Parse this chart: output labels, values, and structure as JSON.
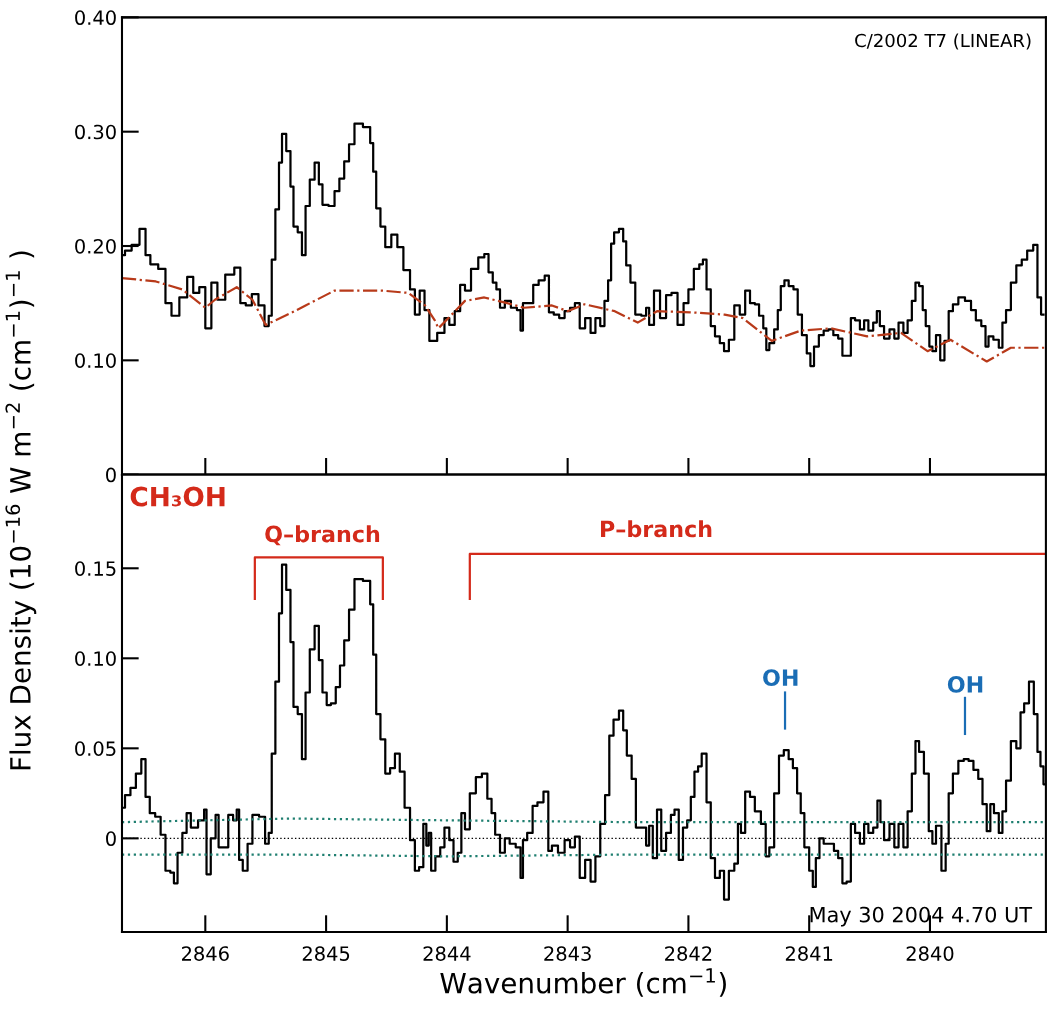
{
  "chart_data": [
    {
      "type": "step",
      "ylabel": "Flux Density (10$^{−16}$ W m$^{−2}$ (cm$^{−1}$)$^{−1}$ )",
      "xlim": [
        2846.69,
        2839.04
      ],
      "ylim": [
        0,
        0.4
      ],
      "xticks": [
        2846,
        2845,
        2844,
        2843,
        2842,
        2841,
        2840
      ],
      "yticks": [
        0,
        {
          "value": 0.1,
          "label": "0.10"
        },
        {
          "value": 0.2,
          "label": "0.20"
        },
        {
          "value": 0.3,
          "label": "0.30"
        },
        {
          "value": 0.4,
          "label": "0.40"
        }
      ],
      "tick_labels": "y",
      "grid": false,
      "legend": false,
      "annotations": [
        "C/2002 T7 (LINEAR)"
      ],
      "series": [
        {
          "color": "#000000",
          "line_style": "solid",
          "x": [
            2846.69,
            2846.64,
            2846.58,
            2846.51,
            2846.48,
            2846.43,
            2846.35,
            2846.31,
            2846.25,
            2846.18,
            2846.12,
            2846.08,
            2846.02,
            2845.98,
            2845.92,
            2845.88,
            2845.79,
            2845.73,
            2845.69,
            2845.64,
            2845.59,
            2845.53,
            2845.49,
            2845.46,
            2845.44,
            2845.4,
            2845.38,
            2845.35,
            2845.31,
            2845.28,
            2845.26,
            2845.21,
            2845.19,
            2845.15,
            2845.12,
            2845.07,
            2845.05,
            2845.01,
            2844.95,
            2844.91,
            2844.87,
            2844.83,
            2844.79,
            2844.74,
            2844.65,
            2844.62,
            2844.6,
            2844.57,
            2844.53,
            2844.49,
            2844.43,
            2844.39,
            2844.33,
            2844.28,
            2844.25,
            2844.2,
            2844.17,
            2844.12,
            2844.04,
            2844.0,
            2843.96,
            2843.91,
            2843.87,
            2843.83,
            2843.77,
            2843.71,
            2843.67,
            2843.64,
            2843.6,
            2843.58,
            2843.54,
            2843.5,
            2843.44,
            2843.4,
            2843.38,
            2843.36,
            2843.3,
            2843.27,
            2843.21,
            2843.17,
            2843.14,
            2843.09,
            2843.05,
            2843.0,
            2842.96,
            2842.92,
            2842.88,
            2842.83,
            2842.79,
            2842.75,
            2842.71,
            2842.68,
            2842.65,
            2842.63,
            2842.6,
            2842.55,
            2842.53,
            2842.5,
            2842.46,
            2842.42,
            2842.36,
            2842.34,
            2842.31,
            2842.26,
            2842.21,
            2842.16,
            2842.12,
            2842.06,
            2842.02,
            2841.98,
            2841.93,
            2841.89,
            2841.87,
            2841.83,
            2841.8,
            2841.76,
            2841.72,
            2841.69,
            2841.64,
            2841.6,
            2841.55,
            2841.51,
            2841.47,
            2841.43,
            2841.4,
            2841.36,
            2841.35,
            2841.31,
            2841.27,
            2841.25,
            2841.22,
            2841.19,
            2841.15,
            2841.11,
            2841.08,
            2841.04,
            2841.0,
            2840.98,
            2840.94,
            2840.9,
            2840.86,
            2840.82,
            2840.78,
            2840.74,
            2840.71,
            2840.67,
            2840.64,
            2840.6,
            2840.56,
            2840.53,
            2840.49,
            2840.45,
            2840.43,
            2840.4,
            2840.36,
            2840.31,
            2840.28,
            2840.24,
            2840.2,
            2840.17,
            2840.13,
            2840.11,
            2840.07,
            2840.05,
            2840.02,
            2839.99,
            2839.97,
            2839.93,
            2839.9,
            2839.86,
            2839.83,
            2839.79,
            2839.74,
            2839.68,
            2839.64,
            2839.6,
            2839.55,
            2839.53,
            2839.5,
            2839.45,
            2839.41,
            2839.39,
            2839.35,
            2839.31,
            2839.26,
            2839.22,
            2839.17,
            2839.12,
            2839.1,
            2839.06
          ],
          "values": [
            0.192,
            0.196,
            0.201,
            0.215,
            0.192,
            0.184,
            0.18,
            0.15,
            0.139,
            0.155,
            0.173,
            0.159,
            0.164,
            0.128,
            0.168,
            0.153,
            0.175,
            0.181,
            0.15,
            0.148,
            0.158,
            0.148,
            0.13,
            0.139,
            0.188,
            0.232,
            0.273,
            0.298,
            0.283,
            0.252,
            0.217,
            0.212,
            0.192,
            0.235,
            0.258,
            0.273,
            0.254,
            0.236,
            0.235,
            0.248,
            0.259,
            0.274,
            0.289,
            0.307,
            0.304,
            0.29,
            0.265,
            0.233,
            0.217,
            0.199,
            0.21,
            0.199,
            0.179,
            0.162,
            0.14,
            0.161,
            0.144,
            0.117,
            0.124,
            0.137,
            0.131,
            0.143,
            0.166,
            0.161,
            0.18,
            0.19,
            0.193,
            0.177,
            0.168,
            0.162,
            0.146,
            0.152,
            0.146,
            0.144,
            0.126,
            0.15,
            0.15,
            0.166,
            0.17,
            0.174,
            0.142,
            0.14,
            0.137,
            0.143,
            0.146,
            0.15,
            0.128,
            0.137,
            0.124,
            0.137,
            0.13,
            0.152,
            0.17,
            0.202,
            0.212,
            0.215,
            0.204,
            0.183,
            0.168,
            0.14,
            0.139,
            0.146,
            0.131,
            0.161,
            0.137,
            0.157,
            0.159,
            0.131,
            0.15,
            0.162,
            0.18,
            0.184,
            0.188,
            0.162,
            0.13,
            0.121,
            0.115,
            0.108,
            0.118,
            0.148,
            0.14,
            0.161,
            0.15,
            0.149,
            0.139,
            0.128,
            0.109,
            0.115,
            0.127,
            0.144,
            0.165,
            0.17,
            0.165,
            0.162,
            0.14,
            0.122,
            0.106,
            0.095,
            0.112,
            0.122,
            0.126,
            0.127,
            0.122,
            0.119,
            0.104,
            0.104,
            0.137,
            0.135,
            0.127,
            0.135,
            0.126,
            0.133,
            0.143,
            0.13,
            0.119,
            0.127,
            0.119,
            0.133,
            0.124,
            0.135,
            0.152,
            0.168,
            0.165,
            0.144,
            0.13,
            0.112,
            0.108,
            0.122,
            0.1,
            0.117,
            0.143,
            0.149,
            0.155,
            0.152,
            0.144,
            0.135,
            0.13,
            0.112,
            0.121,
            0.118,
            0.111,
            0.133,
            0.144,
            0.168,
            0.183,
            0.188,
            0.196,
            0.201,
            0.155,
            0.14
          ]
        },
        {
          "type": "line",
          "color": "#b83a1a",
          "line_style": "dashdot",
          "x": [
            2846.69,
            2846.41,
            2846.19,
            2846.0,
            2845.92,
            2845.74,
            2845.61,
            2845.5,
            2845.28,
            2845.17,
            2844.93,
            2844.54,
            2844.32,
            2844.18,
            2844.1,
            2844.07,
            2843.85,
            2843.69,
            2843.5,
            2843.36,
            2843.13,
            2843.0,
            2842.86,
            2842.61,
            2842.42,
            2842.26,
            2841.98,
            2841.7,
            2841.55,
            2841.31,
            2841.07,
            2840.82,
            2840.52,
            2840.24,
            2840.02,
            2839.83,
            2839.53,
            2839.33,
            2839.05
          ],
          "values": [
            0.172,
            0.169,
            0.162,
            0.146,
            0.153,
            0.164,
            0.153,
            0.131,
            0.142,
            0.148,
            0.161,
            0.161,
            0.159,
            0.148,
            0.135,
            0.128,
            0.152,
            0.155,
            0.15,
            0.146,
            0.148,
            0.143,
            0.149,
            0.143,
            0.133,
            0.143,
            0.142,
            0.14,
            0.137,
            0.117,
            0.126,
            0.128,
            0.121,
            0.124,
            0.108,
            0.118,
            0.099,
            0.111,
            0.111
          ]
        }
      ]
    },
    {
      "type": "step",
      "xlabel": "Wavenumber (cm$^{−1}$)",
      "xlim": [
        2846.69,
        2839.04
      ],
      "ylim": [
        -0.052,
        0.202
      ],
      "xticks": [
        2846,
        2845,
        2844,
        2843,
        2842,
        2841,
        2840
      ],
      "yticks": [
        0,
        {
          "value": 0.05,
          "label": "0.05"
        },
        {
          "value": 0.1,
          "label": "0.10"
        },
        {
          "value": 0.15,
          "label": "0.15"
        }
      ],
      "grid": false,
      "legend": false,
      "ref_lines": [
        {
          "axis": "y",
          "value": 0,
          "color": "#000000",
          "line_style": "dotted"
        }
      ],
      "annotations": [
        "CH₃OH",
        "May 30 2004 4.70 UT",
        "Q–branch",
        "P–branch",
        "OH",
        "OH"
      ],
      "series": [
        {
          "color": "#000000",
          "line_style": "solid",
          "x": [
            2846.69,
            2846.64,
            2846.6,
            2846.55,
            2846.51,
            2846.48,
            2846.44,
            2846.39,
            2846.35,
            2846.31,
            2846.27,
            2846.25,
            2846.21,
            2846.17,
            2846.14,
            2846.1,
            2846.02,
            2846.0,
            2845.98,
            2845.93,
            2845.9,
            2845.88,
            2845.83,
            2845.79,
            2845.75,
            2845.73,
            2845.71,
            2845.67,
            2845.63,
            2845.59,
            2845.52,
            2845.49,
            2845.46,
            2845.44,
            2845.4,
            2845.38,
            2845.35,
            2845.31,
            2845.28,
            2845.26,
            2845.21,
            2845.19,
            2845.15,
            2845.12,
            2845.07,
            2845.05,
            2845.01,
            2844.98,
            2844.94,
            2844.9,
            2844.87,
            2844.83,
            2844.79,
            2844.74,
            2844.65,
            2844.62,
            2844.6,
            2844.57,
            2844.53,
            2844.49,
            2844.45,
            2844.41,
            2844.37,
            2844.33,
            2844.28,
            2844.25,
            2844.21,
            2844.18,
            2844.16,
            2844.14,
            2844.12,
            2844.07,
            2844.04,
            2844.0,
            2843.96,
            2843.93,
            2843.89,
            2843.87,
            2843.83,
            2843.79,
            2843.73,
            2843.69,
            2843.64,
            2843.62,
            2843.58,
            2843.54,
            2843.5,
            2843.46,
            2843.4,
            2843.38,
            2843.36,
            2843.31,
            2843.27,
            2843.23,
            2843.17,
            2843.15,
            2843.11,
            2843.05,
            2843.0,
            2842.96,
            2842.92,
            2842.88,
            2842.83,
            2842.79,
            2842.75,
            2842.71,
            2842.67,
            2842.64,
            2842.6,
            2842.55,
            2842.53,
            2842.49,
            2842.45,
            2842.42,
            2842.36,
            2842.34,
            2842.31,
            2842.28,
            2842.24,
            2842.21,
            2842.16,
            2842.13,
            2842.1,
            2842.06,
            2842.03,
            2841.99,
            2841.97,
            2841.93,
            2841.91,
            2841.87,
            2841.83,
            2841.8,
            2841.76,
            2841.72,
            2841.69,
            2841.64,
            2841.6,
            2841.58,
            2841.55,
            2841.51,
            2841.47,
            2841.43,
            2841.37,
            2841.35,
            2841.31,
            2841.27,
            2841.23,
            2841.19,
            2841.15,
            2841.12,
            2841.08,
            2841.06,
            2841.02,
            2840.98,
            2840.96,
            2840.93,
            2840.9,
            2840.86,
            2840.81,
            2840.78,
            2840.74,
            2840.71,
            2840.67,
            2840.64,
            2840.6,
            2840.56,
            2840.53,
            2840.49,
            2840.45,
            2840.42,
            2840.4,
            2840.36,
            2840.31,
            2840.28,
            2840.24,
            2840.2,
            2840.17,
            2840.13,
            2840.11,
            2840.07,
            2840.03,
            2839.99,
            2839.97,
            2839.93,
            2839.88,
            2839.86,
            2839.83,
            2839.79,
            2839.74,
            2839.7,
            2839.66,
            2839.62,
            2839.58,
            2839.55,
            2839.51,
            2839.49,
            2839.45,
            2839.41,
            2839.39,
            2839.35,
            2839.31,
            2839.26,
            2839.24,
            2839.2,
            2839.16,
            2839.12,
            2839.1,
            2839.07,
            2839.05
          ],
          "values": [
            0.017,
            0.024,
            0.028,
            0.036,
            0.044,
            0.023,
            0.014,
            0.012,
            0.002,
            -0.018,
            -0.019,
            -0.025,
            -0.008,
            0.003,
            0.014,
            0.006,
            0.01,
            0.016,
            -0.02,
            0.0,
            0.013,
            -0.005,
            -0.005,
            0.013,
            0.01,
            0.016,
            -0.012,
            -0.018,
            -0.003,
            0.013,
            0.012,
            -0.003,
            0.003,
            0.047,
            0.087,
            0.125,
            0.152,
            0.138,
            0.109,
            0.073,
            0.069,
            0.044,
            0.081,
            0.105,
            0.118,
            0.099,
            0.081,
            0.074,
            0.075,
            0.084,
            0.096,
            0.11,
            0.127,
            0.144,
            0.143,
            0.13,
            0.102,
            0.069,
            0.055,
            0.036,
            0.039,
            0.047,
            0.037,
            0.017,
            -0.001,
            -0.018,
            -0.016,
            0.008,
            -0.004,
            0.003,
            -0.018,
            -0.01,
            -0.005,
            0.006,
            -0.001,
            -0.013,
            -0.008,
            0.014,
            0.005,
            0.025,
            0.034,
            0.036,
            0.022,
            0.014,
            0.002,
            -0.008,
            0.0,
            -0.003,
            -0.005,
            -0.022,
            -0.001,
            0.003,
            0.018,
            0.02,
            0.026,
            -0.007,
            -0.004,
            -0.008,
            -0.001,
            -0.005,
            0.001,
            -0.022,
            -0.012,
            -0.024,
            -0.01,
            0.008,
            0.024,
            0.057,
            0.066,
            0.071,
            0.06,
            0.046,
            0.033,
            0.006,
            0.006,
            -0.004,
            0.007,
            -0.011,
            0.016,
            -0.007,
            0.003,
            0.013,
            0.016,
            -0.012,
            0.006,
            0.01,
            0.023,
            0.037,
            0.04,
            0.047,
            0.02,
            -0.011,
            -0.022,
            -0.018,
            -0.034,
            -0.018,
            -0.014,
            0.008,
            0.003,
            0.026,
            0.023,
            0.015,
            0.008,
            -0.01,
            -0.005,
            0.025,
            0.046,
            0.049,
            0.044,
            0.039,
            0.025,
            0.014,
            -0.005,
            -0.018,
            -0.027,
            -0.011,
            0.0,
            -0.003,
            -0.003,
            -0.007,
            -0.011,
            -0.025,
            -0.024,
            0.008,
            0.003,
            -0.003,
            0.008,
            0.003,
            0.006,
            0.021,
            0.009,
            -0.001,
            0.008,
            -0.005,
            0.008,
            -0.005,
            0.015,
            0.036,
            0.054,
            0.048,
            0.036,
            0.004,
            -0.003,
            0.007,
            -0.018,
            -0.003,
            0.025,
            0.036,
            0.043,
            0.044,
            0.043,
            0.038,
            0.033,
            0.019,
            0.004,
            0.019,
            0.014,
            0.003,
            0.015,
            0.032,
            0.054,
            0.05,
            0.07,
            0.075,
            0.087,
            0.069,
            0.048,
            0.04,
            0.03
          ]
        },
        {
          "type": "line",
          "color": "#1f7f70",
          "line_style": "dotted",
          "x": [
            2846.69,
            2845.3,
            2844.0,
            2842.5,
            2841.0,
            2839.05
          ],
          "values": [
            0.009,
            0.011,
            0.01,
            0.009,
            0.009,
            0.009
          ]
        },
        {
          "type": "line",
          "color": "#1f7f70",
          "line_style": "dotted",
          "x": [
            2846.69,
            2845.3,
            2844.0,
            2842.5,
            2841.0,
            2839.05
          ],
          "values": [
            -0.009,
            -0.009,
            -0.01,
            -0.009,
            -0.009,
            -0.009
          ]
        },
        {
          "type": "line",
          "color": "#d42a1a",
          "line_style": "solid",
          "x": [
            2845.59,
            2845.59,
            2844.53,
            2844.53
          ],
          "values": [
            0.133,
            0.156,
            0.156,
            0.133
          ]
        },
        {
          "type": "line",
          "color": "#d42a1a",
          "line_style": "solid",
          "x": [
            2843.81,
            2843.81,
            2839.05
          ],
          "values": [
            0.133,
            0.158,
            0.158
          ]
        },
        {
          "type": "line",
          "color": "#1a6db5",
          "line_style": "solid",
          "x": [
            2841.2,
            2841.2
          ],
          "values": [
            0.061,
            0.081
          ]
        },
        {
          "type": "line",
          "color": "#1a6db5",
          "line_style": "solid",
          "x": [
            2839.71,
            2839.71
          ],
          "values": [
            0.058,
            0.078
          ]
        }
      ]
    }
  ]
}
